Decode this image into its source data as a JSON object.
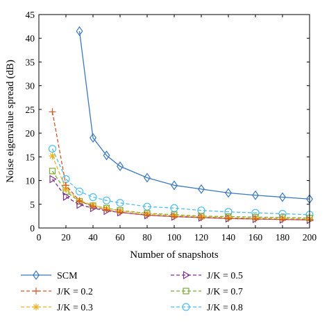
{
  "chart_data": {
    "type": "line",
    "title": "",
    "xlabel": "Number of snapshots",
    "ylabel": "Noise eigenvalue spread (dB)",
    "xlim": [
      0,
      200
    ],
    "ylim": [
      0,
      45
    ],
    "xticks": [
      0,
      20,
      40,
      60,
      80,
      100,
      120,
      140,
      160,
      180,
      200
    ],
    "yticks": [
      0,
      5,
      10,
      15,
      20,
      25,
      30,
      35,
      40,
      45
    ],
    "grid": false,
    "legend_position": "bottom",
    "series": [
      {
        "name": "SCM",
        "color": "#3a78bd",
        "line": "solid",
        "marker": "diamond",
        "x": [
          30,
          40,
          50,
          60,
          80,
          100,
          120,
          140,
          160,
          180,
          200
        ],
        "y": [
          41.5,
          19.0,
          15.3,
          13.0,
          10.6,
          9.0,
          8.2,
          7.4,
          6.9,
          6.5,
          6.1
        ]
      },
      {
        "name": "J/K = 0.2",
        "color": "#d9531e",
        "line": "dashed",
        "marker": "plus",
        "x": [
          10,
          20,
          30,
          40,
          50,
          60,
          80,
          100,
          120,
          140,
          160,
          180,
          200
        ],
        "y": [
          24.5,
          9.0,
          5.7,
          4.5,
          3.8,
          3.3,
          2.7,
          2.4,
          2.2,
          2.0,
          1.9,
          1.8,
          1.7
        ]
      },
      {
        "name": "J/K = 0.3",
        "color": "#edb120",
        "line": "dashed",
        "marker": "asterisk",
        "x": [
          10,
          20,
          30,
          40,
          50,
          60,
          80,
          100,
          120,
          140,
          160,
          180,
          200
        ],
        "y": [
          15.2,
          8.2,
          5.8,
          4.8,
          4.1,
          3.6,
          3.0,
          2.6,
          2.4,
          2.2,
          2.1,
          2.0,
          1.9
        ]
      },
      {
        "name": "J/K = 0.5",
        "color": "#7e2f8e",
        "line": "dashed",
        "marker": "triangle-right",
        "x": [
          10,
          20,
          30,
          40,
          50,
          60,
          80,
          100,
          120,
          140,
          160,
          180,
          200
        ],
        "y": [
          10.3,
          6.6,
          4.9,
          4.2,
          3.6,
          3.3,
          2.7,
          2.4,
          2.2,
          2.0,
          1.9,
          1.8,
          1.7
        ]
      },
      {
        "name": "J/K = 0.7",
        "color": "#77ac30",
        "line": "dashed",
        "marker": "square",
        "x": [
          10,
          20,
          30,
          40,
          50,
          60,
          80,
          100,
          120,
          140,
          160,
          180,
          200
        ],
        "y": [
          12.0,
          7.7,
          5.6,
          4.7,
          4.2,
          3.7,
          3.1,
          2.8,
          2.5,
          2.4,
          2.3,
          2.2,
          2.1
        ]
      },
      {
        "name": "J/K = 0.8",
        "color": "#4dbeee",
        "line": "dashed",
        "marker": "circle",
        "x": [
          10,
          20,
          30,
          40,
          50,
          60,
          80,
          100,
          120,
          140,
          160,
          180,
          200
        ],
        "y": [
          16.7,
          10.3,
          7.7,
          6.5,
          5.8,
          5.3,
          4.5,
          4.2,
          3.7,
          3.4,
          3.2,
          3.0,
          2.8
        ]
      }
    ]
  }
}
